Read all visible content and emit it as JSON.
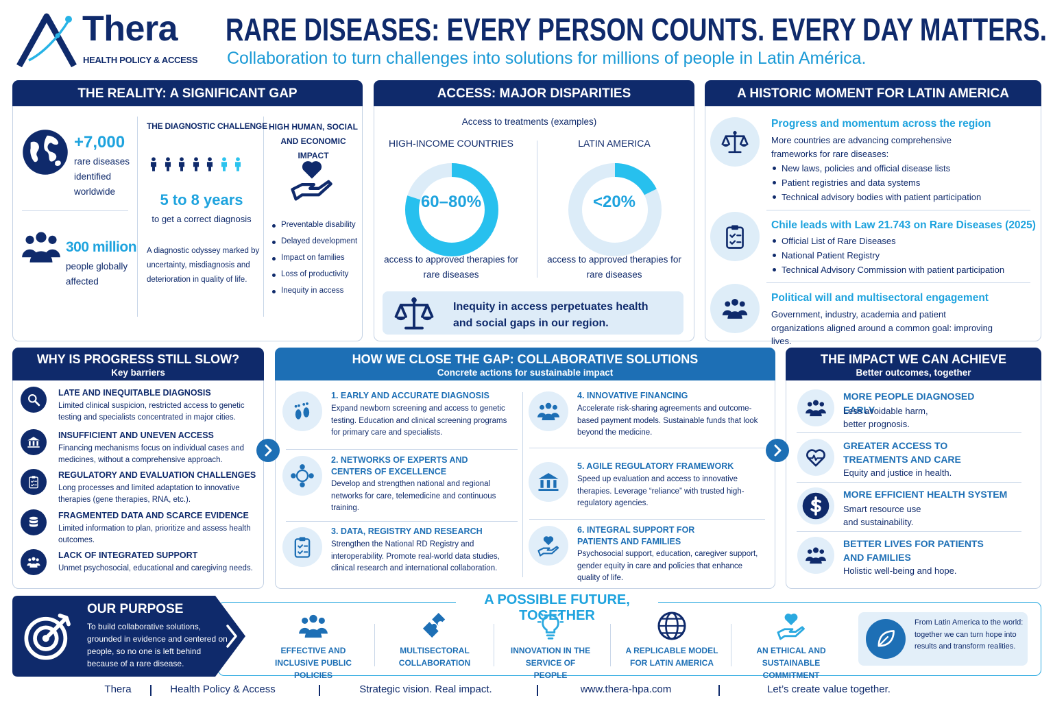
{
  "header": {
    "logo_name": "Thera",
    "logo_tagline": "HEALTH POLICY & ACCESS",
    "title": "RARE DISEASES: EVERY PERSON COUNTS. EVERY DAY MATTERS.",
    "subtitle": "Collaboration to turn challenges into solutions for millions of people in Latin América."
  },
  "reality": {
    "title": "THE REALITY: A SIGNIFICANT GAP",
    "stats": [
      {
        "value": "+7,000",
        "text": "rare diseases identified worldwide"
      },
      {
        "value": "300 million",
        "text": "people globally affected"
      }
    ],
    "diagnostic": {
      "heading": "THE DIAGNOSTIC CHALLENGE",
      "value": "5 to 8 years",
      "text": "to get a correct diagnosis",
      "note": "A diagnostic odyssey marked by uncertainty, misdiagnosis and deterioration in quality of life."
    },
    "impact": {
      "heading": "HIGH HUMAN, SOCIAL AND ECONOMIC IMPACT",
      "items": [
        "Preventable disability",
        "Delayed development",
        "Impact on families",
        "Loss of productivity",
        "Inequity in access"
      ]
    }
  },
  "access": {
    "title": "ACCESS: MAJOR DISPARITIES",
    "caption": "Access to treatments (examples)",
    "groups": [
      {
        "name": "HIGH-INCOME COUNTRIES",
        "value": "60–80%",
        "text": "access to approved therapies for rare diseases"
      },
      {
        "name": "LATIN AMERICA",
        "value": "<20%",
        "text": "access to approved therapies for rare diseases"
      }
    ],
    "note": "Inequity in access perpetuates health and social gaps in our region."
  },
  "historic": {
    "title": "A HISTORIC MOMENT FOR LATIN AMERICA",
    "blocks": [
      {
        "heading": "Progress and momentum across the region",
        "text": "More countries are advancing comprehensive frameworks for rare diseases:",
        "items": [
          "New laws, policies and official disease lists",
          "Patient registries and data systems",
          "Technical advisory bodies with patient participation"
        ]
      },
      {
        "heading": "Chile leads with Law 21.743 on Rare Diseases (2025)",
        "items": [
          "Official List of Rare Diseases",
          "National Patient Registry",
          "Technical Advisory Commission with patient participation"
        ]
      },
      {
        "heading": "Political will and multisectoral engagement",
        "text": "Government, industry, academia and patient organizations aligned around a common goal: improving lives."
      }
    ]
  },
  "barriers": {
    "title": "WHY IS PROGRESS STILL SLOW?",
    "subtitle": "Key barriers",
    "items": [
      {
        "heading": "LATE AND INEQUITABLE DIAGNOSIS",
        "text": "Limited clinical suspicion, restricted access to genetic testing and specialists concentrated in major cities."
      },
      {
        "heading": "INSUFFICIENT AND UNEVEN ACCESS",
        "text": "Financing mechanisms focus on individual cases and medicines, without a comprehensive approach."
      },
      {
        "heading": "REGULATORY AND EVALUATION CHALLENGES",
        "text": "Long processes and limited adaptation to innovative therapies (gene therapies, RNA, etc.)."
      },
      {
        "heading": "FRAGMENTED DATA AND SCARCE EVIDENCE",
        "text": "Limited information to plan, prioritize and assess health outcomes."
      },
      {
        "heading": "LACK OF INTEGRATED SUPPORT",
        "text": "Unmet psychosocial, educational and caregiving needs."
      }
    ]
  },
  "solutions": {
    "title": "HOW WE CLOSE THE GAP: COLLABORATIVE SOLUTIONS",
    "subtitle": "Concrete actions for sustainable impact",
    "items": [
      {
        "heading": "1. EARLY AND ACCURATE DIAGNOSIS",
        "text": "Expand newborn screening and access to genetic testing. Education and clinical screening programs for primary care and specialists."
      },
      {
        "heading": "2. NETWORKS OF EXPERTS AND CENTERS OF EXCELLENCE",
        "text": "Develop and strengthen national and regional networks for care, telemedicine and continuous training."
      },
      {
        "heading": "3. DATA, REGISTRY AND RESEARCH",
        "text": "Strengthen the National RD Registry and interoperability. Promote real-world data studies, clinical research and international collaboration."
      },
      {
        "heading": "4. INNOVATIVE FINANCING",
        "text": "Accelerate risk-sharing agreements and outcome-based payment models. Sustainable funds that look beyond the medicine."
      },
      {
        "heading": "5. AGILE REGULATORY FRAMEWORK",
        "text": "Speed up evaluation and access to innovative therapies. Leverage “reliance” with trusted high-regulatory agencies."
      },
      {
        "heading": "6. INTEGRAL SUPPORT FOR PATIENTS AND FAMILIES",
        "text": "Psychosocial support, education, caregiver support, gender equity in care and policies that enhance quality of life."
      }
    ]
  },
  "impact": {
    "title": "THE IMPACT WE CAN ACHIEVE",
    "subtitle": "Better outcomes, together",
    "items": [
      {
        "heading": "MORE PEOPLE DIAGNOSED EARLY",
        "text": "Less avoidable harm, better prognosis."
      },
      {
        "heading": "GREATER ACCESS TO TREATMENTS AND CARE",
        "text": "Equity and justice in health."
      },
      {
        "heading": "MORE EFFICIENT HEALTH SYSTEM",
        "text": "Smart resource use and sustainability."
      },
      {
        "heading": "BETTER LIVES FOR PATIENTS AND FAMILIES",
        "text": "Holistic well-being and hope."
      }
    ]
  },
  "purpose": {
    "title": "OUR PURPOSE",
    "text": "To build collaborative solutions, grounded in evidence and centered on people, so no one is left behind because of a rare disease."
  },
  "future": {
    "title": "A POSSIBLE FUTURE, TOGETHER",
    "items": [
      "EFFECTIVE AND INCLUSIVE PUBLIC POLICIES",
      "MULTISECTORAL COLLABORATION",
      "INNOVATION IN THE SERVICE OF PEOPLE",
      "A REPLICABLE MODEL FOR LATIN AMERICA",
      "AN ETHICAL AND SUSTAINABLE COMMITMENT"
    ],
    "note": "From Latin America to the world: together we can turn hope into results and transform realities."
  },
  "footer": {
    "items": [
      "Thera",
      "Health Policy & Access",
      "Strategic vision. Real impact.",
      "www.thera-hpa.com",
      "Let’s create value together."
    ]
  }
}
